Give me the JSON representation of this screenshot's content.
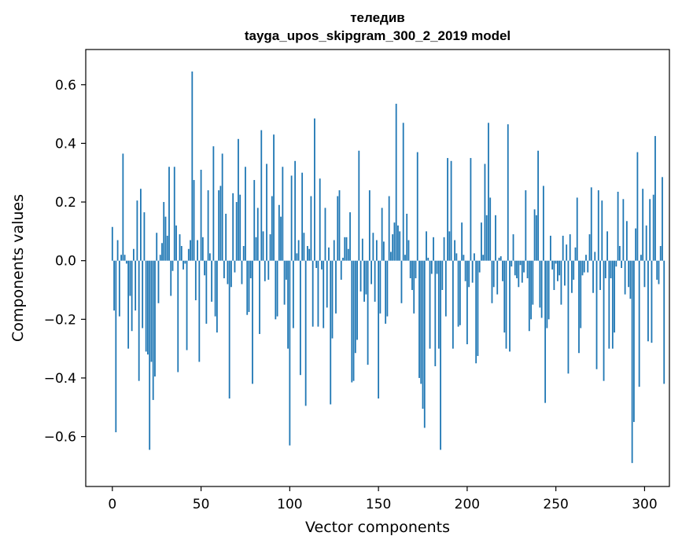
{
  "chart_data": {
    "type": "bar",
    "title": "теледив",
    "subtitle": "tayga_upos_skipgram_300_2_2019 model",
    "xlabel": "Vector components",
    "ylabel": "Components values",
    "xlim": [
      -15,
      314
    ],
    "ylim": [
      -0.77,
      0.72
    ],
    "xticks": [
      0,
      50,
      100,
      150,
      200,
      250,
      300
    ],
    "yticks": [
      -0.6,
      -0.4,
      -0.2,
      0.0,
      0.2,
      0.4,
      0.6
    ],
    "ytick_labels": [
      "−0.6",
      "−0.4",
      "−0.2",
      "0.0",
      "0.2",
      "0.4",
      "0.6"
    ],
    "bar_color": "#1f77b4",
    "grid": false,
    "legend": "none",
    "series": [
      {
        "name": "теледив",
        "values": [
          0.115,
          -0.17,
          -0.585,
          0.07,
          -0.19,
          0.02,
          0.365,
          0.02,
          -0.01,
          -0.3,
          -0.12,
          -0.24,
          0.04,
          -0.17,
          0.205,
          -0.41,
          0.245,
          -0.23,
          0.165,
          -0.31,
          -0.32,
          -0.645,
          -0.345,
          -0.475,
          -0.395,
          0.095,
          -0.145,
          0.02,
          0.06,
          0.2,
          0.15,
          0.085,
          0.32,
          -0.12,
          -0.035,
          0.32,
          0.12,
          -0.38,
          0.09,
          0.05,
          -0.03,
          -0.01,
          -0.305,
          0.04,
          0.07,
          0.645,
          0.275,
          -0.135,
          0.07,
          -0.345,
          0.31,
          0.08,
          -0.05,
          -0.215,
          0.24,
          0.025,
          -0.14,
          0.39,
          -0.19,
          -0.245,
          0.24,
          0.255,
          0.365,
          -0.06,
          0.16,
          -0.08,
          -0.47,
          -0.09,
          0.23,
          -0.04,
          0.2,
          0.415,
          0.225,
          -0.08,
          0.05,
          0.32,
          -0.185,
          -0.175,
          -0.06,
          -0.42,
          0.275,
          0.08,
          0.18,
          -0.25,
          0.445,
          0.1,
          -0.07,
          0.33,
          -0.065,
          0.09,
          0.22,
          0.43,
          -0.2,
          -0.19,
          0.19,
          0.15,
          0.32,
          -0.15,
          -0.065,
          -0.3,
          -0.63,
          0.29,
          -0.23,
          0.34,
          0.025,
          0.07,
          -0.39,
          0.3,
          0.095,
          -0.495,
          0.05,
          0.04,
          0.22,
          -0.225,
          0.485,
          -0.025,
          -0.225,
          0.28,
          -0.03,
          -0.23,
          0.18,
          -0.16,
          0.045,
          -0.49,
          -0.265,
          0.07,
          -0.18,
          0.22,
          0.24,
          -0.065,
          0.01,
          0.08,
          0.08,
          0.04,
          0.165,
          -0.415,
          -0.41,
          -0.315,
          -0.27,
          0.375,
          -0.105,
          0.075,
          -0.14,
          -0.115,
          -0.355,
          0.24,
          -0.08,
          0.095,
          -0.14,
          0.07,
          -0.47,
          -0.18,
          0.18,
          0.065,
          -0.215,
          -0.19,
          0.22,
          0.03,
          0.09,
          0.13,
          0.535,
          0.12,
          0.1,
          -0.145,
          0.47,
          0.02,
          0.16,
          0.07,
          -0.06,
          -0.1,
          -0.18,
          -0.06,
          0.37,
          -0.4,
          -0.42,
          -0.505,
          -0.57,
          0.1,
          0.01,
          -0.3,
          -0.045,
          0.08,
          -0.36,
          -0.045,
          -0.3,
          -0.645,
          -0.1,
          0.08,
          -0.19,
          0.35,
          0.1,
          0.34,
          -0.3,
          0.07,
          0.025,
          -0.225,
          -0.22,
          0.13,
          0.02,
          -0.07,
          -0.285,
          -0.09,
          0.35,
          -0.075,
          0.025,
          -0.35,
          -0.325,
          -0.04,
          0.13,
          0.02,
          0.33,
          0.155,
          0.47,
          0.215,
          -0.145,
          -0.09,
          0.155,
          -0.115,
          0.01,
          0.015,
          -0.07,
          -0.245,
          -0.3,
          0.465,
          -0.31,
          -0.02,
          0.09,
          -0.05,
          -0.06,
          -0.09,
          -0.015,
          -0.075,
          -0.04,
          0.24,
          -0.06,
          -0.24,
          -0.2,
          -0.15,
          0.175,
          0.155,
          0.375,
          -0.16,
          -0.195,
          0.255,
          -0.485,
          -0.23,
          -0.2,
          0.085,
          -0.03,
          -0.1,
          -0.01,
          -0.07,
          -0.05,
          -0.15,
          0.085,
          -0.085,
          0.055,
          -0.385,
          0.09,
          -0.11,
          -0.065,
          0.045,
          0.215,
          -0.315,
          -0.23,
          -0.05,
          -0.04,
          0.02,
          -0.04,
          0.09,
          0.25,
          -0.11,
          0.03,
          -0.37,
          0.24,
          -0.1,
          0.205,
          -0.41,
          -0.06,
          0.1,
          -0.3,
          -0.06,
          -0.3,
          -0.245,
          -0.02,
          0.235,
          0.05,
          -0.025,
          0.21,
          -0.115,
          0.135,
          -0.09,
          -0.13,
          -0.69,
          -0.55,
          0.11,
          0.37,
          -0.43,
          0.02,
          0.245,
          -0.09,
          0.12,
          -0.275,
          0.21,
          -0.28,
          0.225,
          0.425,
          -0.065,
          -0.08,
          0.05,
          0.285,
          -0.42
        ]
      }
    ]
  }
}
